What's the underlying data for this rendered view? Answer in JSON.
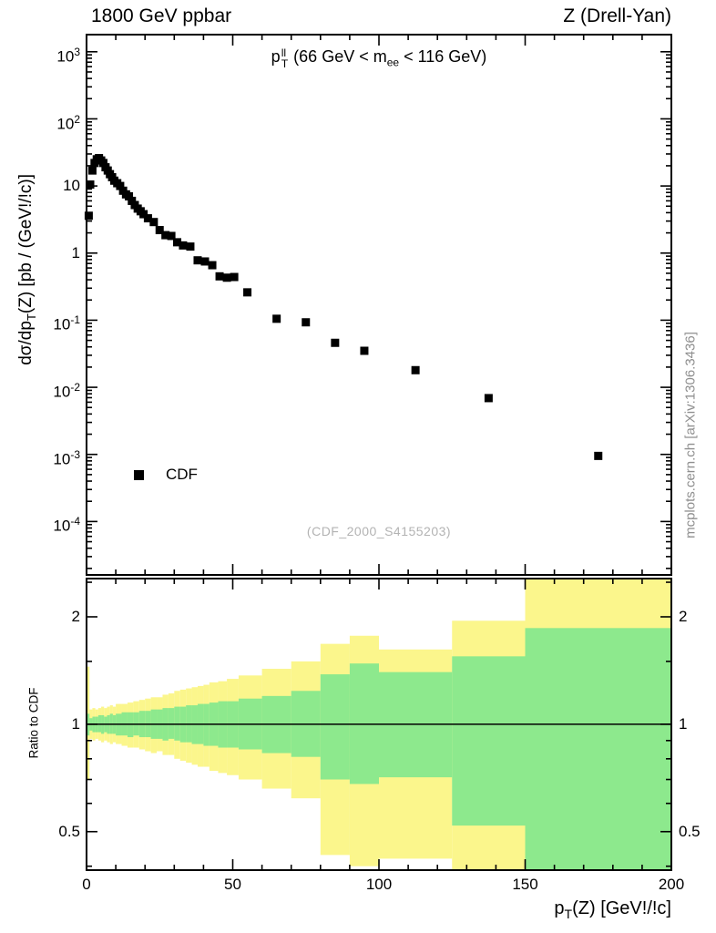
{
  "header": {
    "left": "1800 GeV ppbar",
    "right": "Z (Drell-Yan)"
  },
  "annotation": {
    "segments": [
      {
        "t": "p"
      },
      {
        "u": "ll",
        "d": "T"
      },
      {
        "t": " (66 GeV < m"
      },
      {
        "d": "ee"
      },
      {
        "t": " < 116 GeV)"
      }
    ]
  },
  "axes": {
    "y_title_segments": [
      {
        "t": "dσ/dp"
      },
      {
        "d": "T"
      },
      {
        "t": "(Z) [pb / (GeV!/!c)]"
      }
    ],
    "x_title_segments": [
      {
        "t": "p"
      },
      {
        "d": "T"
      },
      {
        "t": "(Z) [GeV!/!c]"
      }
    ],
    "ratio_title": "Ratio to CDF"
  },
  "legend": {
    "label": "CDF"
  },
  "watermark": "(CDF_2000_S4155203)",
  "side_note": "mcplots.cern.ch [arXiv:1306.3436]",
  "chart_data": {
    "type": "scatter",
    "title": "",
    "xlabel": "pT(Z) [GeV!/!c]",
    "ylabel": "dσ/dpT(Z) [pb / (GeV!/!c)]",
    "xlim": [
      0,
      200
    ],
    "ylim_log": [
      1.6e-05,
      1800
    ],
    "x_major_ticks": [
      0,
      50,
      100,
      150,
      200
    ],
    "x_minor_step": 10,
    "y_decade_labels": [
      3,
      2,
      1,
      0,
      -1,
      -2,
      -3,
      -4
    ],
    "series": [
      {
        "name": "CDF",
        "marker": "filled-square",
        "color": "#000000",
        "points": [
          [
            0.75,
            3.6
          ],
          [
            1.25,
            10.5
          ],
          [
            2,
            17
          ],
          [
            2.75,
            22
          ],
          [
            3.5,
            25
          ],
          [
            4.25,
            26
          ],
          [
            5,
            24
          ],
          [
            5.75,
            22
          ],
          [
            6.5,
            19
          ],
          [
            7.25,
            17
          ],
          [
            8,
            15
          ],
          [
            8.75,
            13.5
          ],
          [
            9.5,
            12
          ],
          [
            10.5,
            11
          ],
          [
            11.5,
            10
          ],
          [
            12.5,
            8.5
          ],
          [
            13.5,
            7.5
          ],
          [
            14.5,
            7
          ],
          [
            15.5,
            6
          ],
          [
            16.5,
            5.2
          ],
          [
            17.5,
            4.6
          ],
          [
            18.5,
            4.2
          ],
          [
            19.5,
            3.8
          ],
          [
            21,
            3.3
          ],
          [
            23,
            2.9
          ],
          [
            25,
            2.2
          ],
          [
            27,
            1.85
          ],
          [
            29,
            1.8
          ],
          [
            31,
            1.45
          ],
          [
            33,
            1.3
          ],
          [
            35.5,
            1.25
          ],
          [
            38,
            0.78
          ],
          [
            40.5,
            0.75
          ],
          [
            43,
            0.66
          ],
          [
            45.5,
            0.45
          ],
          [
            48,
            0.43
          ],
          [
            50.5,
            0.44
          ],
          [
            55,
            0.26
          ],
          [
            65,
            0.105
          ],
          [
            75,
            0.093
          ],
          [
            85,
            0.046
          ],
          [
            95,
            0.035
          ],
          [
            112.5,
            0.018
          ],
          [
            137.5,
            0.0069
          ],
          [
            175,
            0.00095
          ]
        ]
      }
    ],
    "ratio_panel": {
      "ylabel": "Ratio to CDF",
      "ylim_log": [
        0.39,
        2.56
      ],
      "yticks": [
        2,
        1,
        0.5
      ],
      "y_minor": [
        0.4,
        0.6,
        0.7,
        0.8,
        0.9,
        1.5,
        2.5
      ],
      "reference_line": 1,
      "bands": [
        [
          0,
          1,
          0.93,
          1.07,
          0.7,
          1.45
        ],
        [
          1,
          2,
          0.96,
          1.04,
          0.91,
          1.1
        ],
        [
          2,
          3,
          0.95,
          1.05,
          0.9,
          1.11
        ],
        [
          3,
          4,
          0.95,
          1.05,
          0.91,
          1.1
        ],
        [
          4,
          5,
          0.95,
          1.06,
          0.9,
          1.11
        ],
        [
          5,
          6,
          0.94,
          1.06,
          0.89,
          1.12
        ],
        [
          6,
          7,
          0.95,
          1.05,
          0.9,
          1.11
        ],
        [
          7,
          8,
          0.94,
          1.06,
          0.89,
          1.12
        ],
        [
          8,
          9,
          0.94,
          1.07,
          0.88,
          1.13
        ],
        [
          9,
          10,
          0.94,
          1.06,
          0.89,
          1.12
        ],
        [
          10,
          12,
          0.93,
          1.07,
          0.88,
          1.14
        ],
        [
          12,
          14,
          0.93,
          1.08,
          0.87,
          1.14
        ],
        [
          14,
          16,
          0.92,
          1.08,
          0.86,
          1.15
        ],
        [
          16,
          18,
          0.93,
          1.08,
          0.86,
          1.16
        ],
        [
          18,
          20,
          0.92,
          1.09,
          0.85,
          1.17
        ],
        [
          20,
          22,
          0.92,
          1.09,
          0.84,
          1.18
        ],
        [
          22,
          24,
          0.91,
          1.1,
          0.83,
          1.19
        ],
        [
          24,
          26,
          0.91,
          1.1,
          0.84,
          1.19
        ],
        [
          26,
          28,
          0.9,
          1.11,
          0.82,
          1.21
        ],
        [
          28,
          30,
          0.91,
          1.11,
          0.82,
          1.22
        ],
        [
          30,
          32,
          0.9,
          1.12,
          0.8,
          1.24
        ],
        [
          32,
          34,
          0.89,
          1.12,
          0.79,
          1.25
        ],
        [
          34,
          36,
          0.89,
          1.13,
          0.78,
          1.26
        ],
        [
          36,
          38,
          0.88,
          1.13,
          0.77,
          1.27
        ],
        [
          38,
          40,
          0.88,
          1.14,
          0.76,
          1.28
        ],
        [
          40,
          42,
          0.87,
          1.14,
          0.76,
          1.29
        ],
        [
          42,
          45,
          0.87,
          1.15,
          0.74,
          1.31
        ],
        [
          45,
          48,
          0.86,
          1.16,
          0.73,
          1.32
        ],
        [
          48,
          52,
          0.86,
          1.16,
          0.72,
          1.34
        ],
        [
          52,
          60,
          0.85,
          1.18,
          0.7,
          1.37
        ],
        [
          60,
          70,
          0.83,
          1.2,
          0.66,
          1.43
        ],
        [
          70,
          80,
          0.81,
          1.24,
          0.62,
          1.5
        ],
        [
          80,
          90,
          0.7,
          1.38,
          0.43,
          1.68
        ],
        [
          90,
          100,
          0.68,
          1.48,
          0.4,
          1.77
        ],
        [
          100,
          125,
          0.71,
          1.4,
          0.42,
          1.62
        ],
        [
          125,
          150,
          0.52,
          1.55,
          0.37,
          1.95
        ],
        [
          150,
          200,
          0.3,
          1.86,
          0.28,
          2.6
        ]
      ]
    },
    "colors": {
      "band_inner": "#8DE98D",
      "band_outer": "#FBF68C",
      "marker": "#000000"
    }
  }
}
